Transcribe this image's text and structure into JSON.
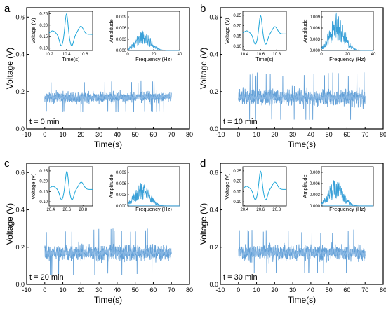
{
  "colors": {
    "signal": "#5b9bd5",
    "inset_signal": "#1ea6d9",
    "spectrum": "#3aa0d8",
    "axis": "#000000"
  },
  "chart_data": [
    {
      "type": "line",
      "panel_label": "a",
      "annotation": "t = 0 min",
      "xlabel": "Time(s)",
      "ylabel": "Voltage (V)",
      "xlim": [
        -10,
        80
      ],
      "ylim": [
        0,
        0.65
      ],
      "xticks": [
        "-10",
        "0",
        "10",
        "20",
        "30",
        "40",
        "50",
        "60",
        "70",
        "80"
      ],
      "yticks": [
        "0.0",
        "0.2",
        "0.4",
        "0.6"
      ],
      "signal": {
        "t_start": 0,
        "t_end": 70,
        "mean": 0.17,
        "min": 0.09,
        "max": 0.27
      },
      "inset_waveform": {
        "xlabel": "Time(s)",
        "ylabel": "Voltage (V)",
        "xlim": [
          10.2,
          10.7
        ],
        "ylim": [
          0.09,
          0.26
        ],
        "xticks": [
          "10.2",
          "10.4",
          "10.6"
        ],
        "yticks": [
          "0.10",
          "0.15",
          "0.20",
          "0.25"
        ],
        "peak": [
          10.4,
          0.25
        ]
      },
      "inset_spectrum": {
        "xlabel": "Frequency (Hz)",
        "ylabel": "Amplitude",
        "xlim": [
          0,
          40
        ],
        "ylim": [
          0,
          0.0105
        ],
        "xticks": [
          "0",
          "20",
          "40"
        ],
        "yticks": [
          "0.000",
          "0.003",
          "0.006",
          "0.009"
        ],
        "peak_freq": 12,
        "peak_amp": 0.0045
      }
    },
    {
      "type": "line",
      "panel_label": "b",
      "annotation": "t = 10 min",
      "xlabel": "Time(s)",
      "ylabel": "Voltage (V)",
      "xlim": [
        -10,
        80
      ],
      "ylim": [
        0,
        0.65
      ],
      "xticks": [
        "-10",
        "0",
        "10",
        "20",
        "30",
        "40",
        "50",
        "60",
        "70",
        "80"
      ],
      "yticks": [
        "0.0",
        "0.2",
        "0.4",
        "0.6"
      ],
      "signal": {
        "t_start": 0,
        "t_end": 70,
        "mean": 0.17,
        "min": 0.05,
        "max": 0.32
      },
      "inset_waveform": {
        "xlabel": "Time(s)",
        "ylabel": "Voltage (V)",
        "xlim": [
          10.38,
          10.92
        ],
        "ylim": [
          0.08,
          0.27
        ],
        "xticks": [
          "10.4",
          "10.6",
          "10.8"
        ],
        "yticks": [
          "0.10",
          "0.15",
          "0.20",
          "0.25"
        ],
        "peak": [
          10.6,
          0.26
        ]
      },
      "inset_spectrum": {
        "xlabel": "Frequency (Hz)",
        "ylabel": "Amplitude",
        "xlim": [
          0,
          40
        ],
        "ylim": [
          0,
          0.0105
        ],
        "xticks": [
          "0",
          "20",
          "40"
        ],
        "yticks": [
          "0.000",
          "0.003",
          "0.006",
          "0.009"
        ],
        "peak_freq": 12,
        "peak_amp": 0.0085
      }
    },
    {
      "type": "line",
      "panel_label": "c",
      "annotation": "t = 20 min",
      "xlabel": "Time(s)",
      "ylabel": "Voltage (V)",
      "xlim": [
        -10,
        80
      ],
      "ylim": [
        0,
        0.65
      ],
      "xticks": [
        "-10",
        "0",
        "10",
        "20",
        "30",
        "40",
        "50",
        "60",
        "70",
        "80"
      ],
      "yticks": [
        "0.0",
        "0.2",
        "0.4",
        "0.6"
      ],
      "signal": {
        "t_start": 0,
        "t_end": 70,
        "mean": 0.17,
        "min": 0.05,
        "max": 0.31
      },
      "inset_waveform": {
        "xlabel": "",
        "ylabel": "Voltage (V)",
        "xlim": [
          20.38,
          20.92
        ],
        "ylim": [
          0.08,
          0.27
        ],
        "xticks": [
          "20.4",
          "20.6",
          "20.8"
        ],
        "yticks": [
          "0.10",
          "0.15",
          "0.20",
          "0.25"
        ],
        "peak": [
          20.6,
          0.26
        ]
      },
      "inset_spectrum": {
        "xlabel": "Frequency (Hz)",
        "ylabel": "Amplitude",
        "xlim": [
          0,
          40
        ],
        "ylim": [
          0,
          0.0105
        ],
        "xticks": [],
        "yticks": [
          "0.000",
          "0.003",
          "0.006",
          "0.009"
        ],
        "peak_freq": 11,
        "peak_amp": 0.0055
      }
    },
    {
      "type": "line",
      "panel_label": "d",
      "annotation": "t = 30 min",
      "xlabel": "Time(s)",
      "ylabel": "Voltage (V)",
      "xlim": [
        -10,
        80
      ],
      "ylim": [
        0,
        0.65
      ],
      "xticks": [
        "-10",
        "0",
        "10",
        "20",
        "30",
        "40",
        "50",
        "60",
        "70",
        "80"
      ],
      "yticks": [
        "0.0",
        "0.2",
        "0.4",
        "0.6"
      ],
      "signal": {
        "t_start": 0,
        "t_end": 70,
        "mean": 0.17,
        "min": 0.06,
        "max": 0.31
      },
      "inset_waveform": {
        "xlabel": "",
        "ylabel": "Voltage (V)",
        "xlim": [
          20.38,
          20.92
        ],
        "ylim": [
          0.08,
          0.27
        ],
        "xticks": [
          "20.4",
          "20.6",
          "20.8"
        ],
        "yticks": [
          "0.10",
          "0.15",
          "0.20",
          "0.25"
        ],
        "peak": [
          20.6,
          0.26
        ]
      },
      "inset_spectrum": {
        "xlabel": "Frequency (Hz)",
        "ylabel": "Amplitude",
        "xlim": [
          0,
          40
        ],
        "ylim": [
          0,
          0.0105
        ],
        "xticks": [],
        "yticks": [
          "0.000",
          "0.003",
          "0.006",
          "0.009"
        ],
        "peak_freq": 11,
        "peak_amp": 0.006
      }
    }
  ]
}
